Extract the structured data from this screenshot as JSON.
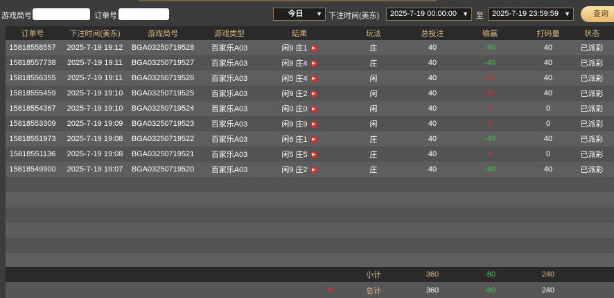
{
  "filters": {
    "round_label": "游戏局号",
    "round_value": "",
    "order_label": "订单号",
    "order_value": "",
    "period": "今日",
    "time_label": "下注时间(美东)",
    "start": "2025-7-19 00:00:00",
    "to_label": "至",
    "end": "2025-7-19 23:59:59",
    "query_label": "查询"
  },
  "columns": [
    "订单号",
    "下注时间(美东)",
    "游戏局号",
    "游戏类型",
    "结果",
    "玩法",
    "总投注",
    "输赢",
    "打码量",
    "状态"
  ],
  "rows": [
    [
      "15818558557",
      "2025-7-19 19:12",
      "BGA03250719528",
      "百家乐A03",
      "闲9 庄1",
      "庄",
      "40",
      "-40",
      "40",
      "已派彩"
    ],
    [
      "15818557738",
      "2025-7-19 19:11",
      "BGA03250719527",
      "百家乐A03",
      "闲9 庄4",
      "庄",
      "40",
      "-40",
      "40",
      "已派彩"
    ],
    [
      "15818556355",
      "2025-7-19 19:11",
      "BGA03250719526",
      "百家乐A03",
      "闲5 庄4",
      "闲",
      "40",
      "40",
      "40",
      "已派彩"
    ],
    [
      "15818555459",
      "2025-7-19 19:10",
      "BGA03250719525",
      "百家乐A03",
      "闲9 庄2",
      "闲",
      "40",
      "40",
      "40",
      "已派彩"
    ],
    [
      "15818554367",
      "2025-7-19 19:10",
      "BGA03250719524",
      "百家乐A03",
      "闲0 庄0",
      "闲",
      "40",
      "0",
      "0",
      "已派彩"
    ],
    [
      "15818553309",
      "2025-7-19 19:09",
      "BGA03250719523",
      "百家乐A03",
      "闲9 庄9",
      "闲",
      "40",
      "0",
      "0",
      "已派彩"
    ],
    [
      "15818551973",
      "2025-7-19 19:08",
      "BGA03250719522",
      "百家乐A03",
      "闲6 庄1",
      "庄",
      "40",
      "-40",
      "40",
      "已派彩"
    ],
    [
      "15818551136",
      "2025-7-19 19:08",
      "BGA03250719521",
      "百家乐A03",
      "闲5 庄5",
      "庄",
      "40",
      "0",
      "0",
      "已派彩"
    ],
    [
      "15818549900",
      "2025-7-19 19:07",
      "BGA03250719520",
      "百家乐A03",
      "闲9 庄2",
      "庄",
      "40",
      "-40",
      "40",
      "已派彩"
    ]
  ],
  "subtotal": {
    "label": "小计",
    "bet": "360",
    "winloss": "-80",
    "turnover": "240"
  },
  "total": {
    "label": "总计",
    "bet": "360",
    "winloss": "-80",
    "turnover": "240"
  },
  "colors": {
    "loss": "#2ecc3a",
    "win": "#d83030",
    "header_text": "#d9b982"
  },
  "icons": {
    "play": "video-play-icon",
    "refresh": "swap-arrows-icon",
    "dropdown": "triangle-down-icon"
  }
}
